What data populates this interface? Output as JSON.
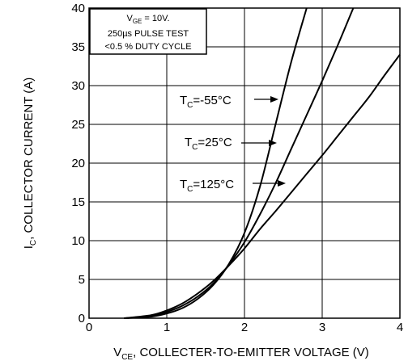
{
  "chart_data": {
    "type": "line",
    "xlabel": {
      "main": "V",
      "sub": "CE",
      "rest": ", COLLECTER-TO-EMITTER VOLTAGE (V)"
    },
    "ylabel": {
      "main": "I",
      "sub": "C",
      "rest": ", COLLECTOR CURRENT (A)"
    },
    "xlim": [
      0,
      4
    ],
    "ylim": [
      0,
      40
    ],
    "xticks": [
      "0",
      "1",
      "2",
      "3",
      "4"
    ],
    "yticks": [
      "0",
      "5",
      "10",
      "15",
      "20",
      "25",
      "30",
      "35",
      "40"
    ],
    "grid": true,
    "conditions": {
      "line1": {
        "main": "V",
        "sub": "GE",
        "rest": " = 10V."
      },
      "line2": "250µs PULSE TEST",
      "line3": "<0.5 % DUTY CYCLE"
    },
    "series": [
      {
        "label": {
          "main": "T",
          "sub": "C",
          "rest": "=-55°C"
        },
        "x": [
          0.45,
          0.8,
          1.0,
          1.2,
          1.4,
          1.6,
          1.8,
          2.0,
          2.2,
          2.4,
          2.6,
          2.8
        ],
        "y": [
          0,
          0.2,
          0.6,
          1.3,
          2.5,
          4.3,
          7.0,
          11.0,
          17.0,
          25.0,
          33.0,
          40.0
        ]
      },
      {
        "label": {
          "main": "T",
          "sub": "C",
          "rest": "=25°C"
        },
        "x": [
          0.45,
          0.8,
          1.0,
          1.2,
          1.4,
          1.6,
          1.8,
          2.0,
          2.2,
          2.4,
          2.6,
          2.8,
          3.0,
          3.2,
          3.4
        ],
        "y": [
          0,
          0.3,
          0.8,
          1.6,
          2.8,
          4.5,
          6.9,
          9.8,
          13.4,
          17.4,
          21.8,
          26.2,
          30.6,
          35.2,
          40.0
        ]
      },
      {
        "label": {
          "main": "T",
          "sub": "C",
          "rest": "=125°C"
        },
        "x": [
          0.45,
          0.8,
          1.0,
          1.2,
          1.4,
          1.6,
          1.8,
          2.0,
          2.2,
          2.4,
          2.6,
          2.8,
          3.0,
          3.2,
          3.4,
          3.6,
          3.8,
          4.0
        ],
        "y": [
          0,
          0.4,
          1.0,
          1.9,
          3.2,
          4.8,
          6.8,
          9.0,
          11.5,
          13.8,
          16.2,
          18.6,
          21.0,
          23.5,
          26.0,
          28.5,
          31.3,
          34.0
        ]
      }
    ]
  }
}
